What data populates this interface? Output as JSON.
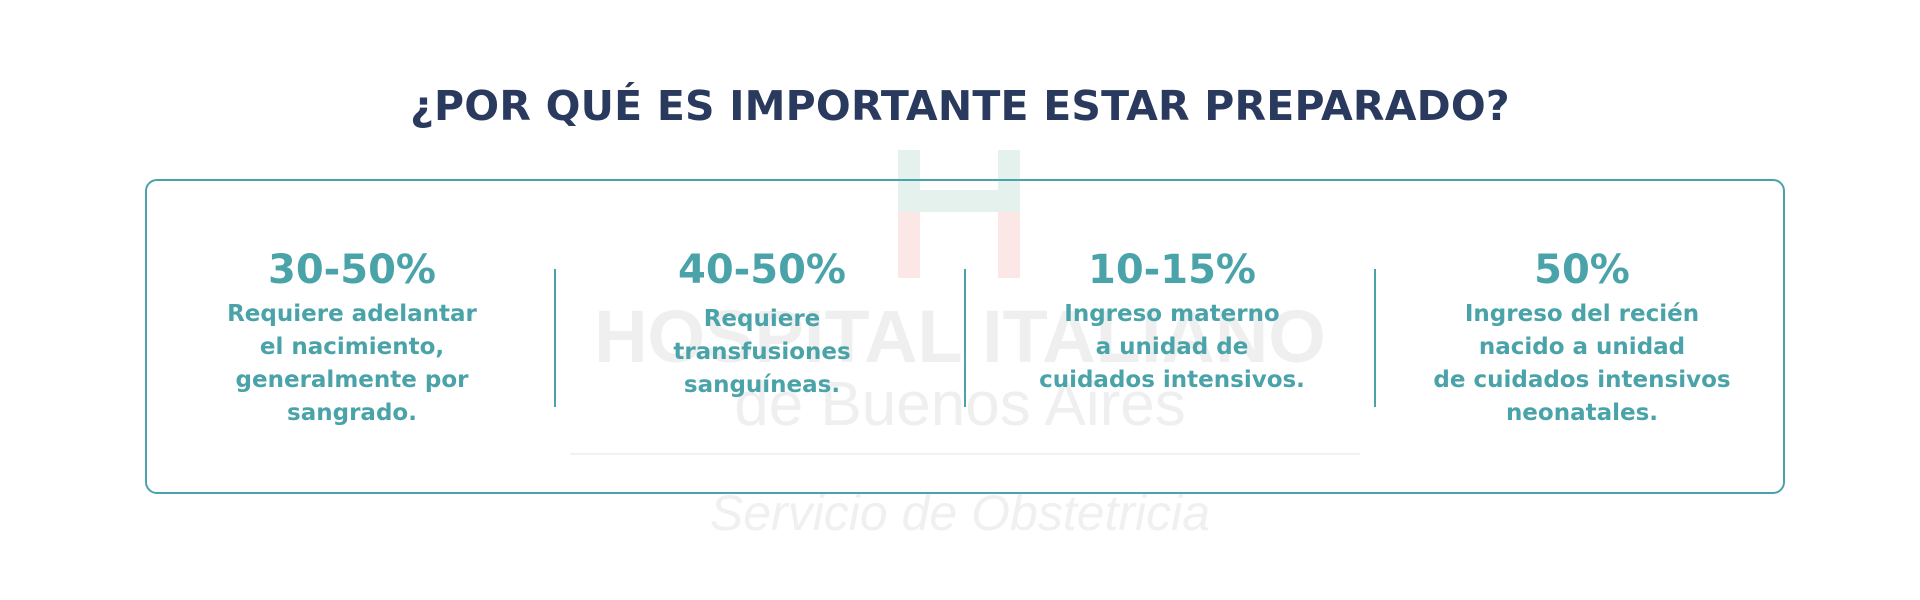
{
  "title": "¿POR QUÉ ES IMPORTANTE ESTAR PREPARADO?",
  "watermark": {
    "line1": "HOSPITAL ITALIANO",
    "line2": "de Buenos Aires",
    "line3": "Servicio de Obstetricia"
  },
  "stats": [
    {
      "value": "30-50%",
      "description": "Requiere adelantar\nel nacimiento,\ngeneralmente por\nsangrado."
    },
    {
      "value": "40-50%",
      "description": "Requiere\ntransfusiones\nsanguíneas."
    },
    {
      "value": "10-15%",
      "description": "Ingreso materno\na unidad de\ncuidados intensivos."
    },
    {
      "value": "50%",
      "description": "Ingreso del recién\nnacido a unidad\nde cuidados intensivos\nneonatales."
    }
  ],
  "colors": {
    "title": "#2a3a5e",
    "accent": "#4aa3a8",
    "watermark_text": "#efefef",
    "watermark_cross_green": "#e4f1ec",
    "watermark_cross_red": "#fbe8e6"
  }
}
